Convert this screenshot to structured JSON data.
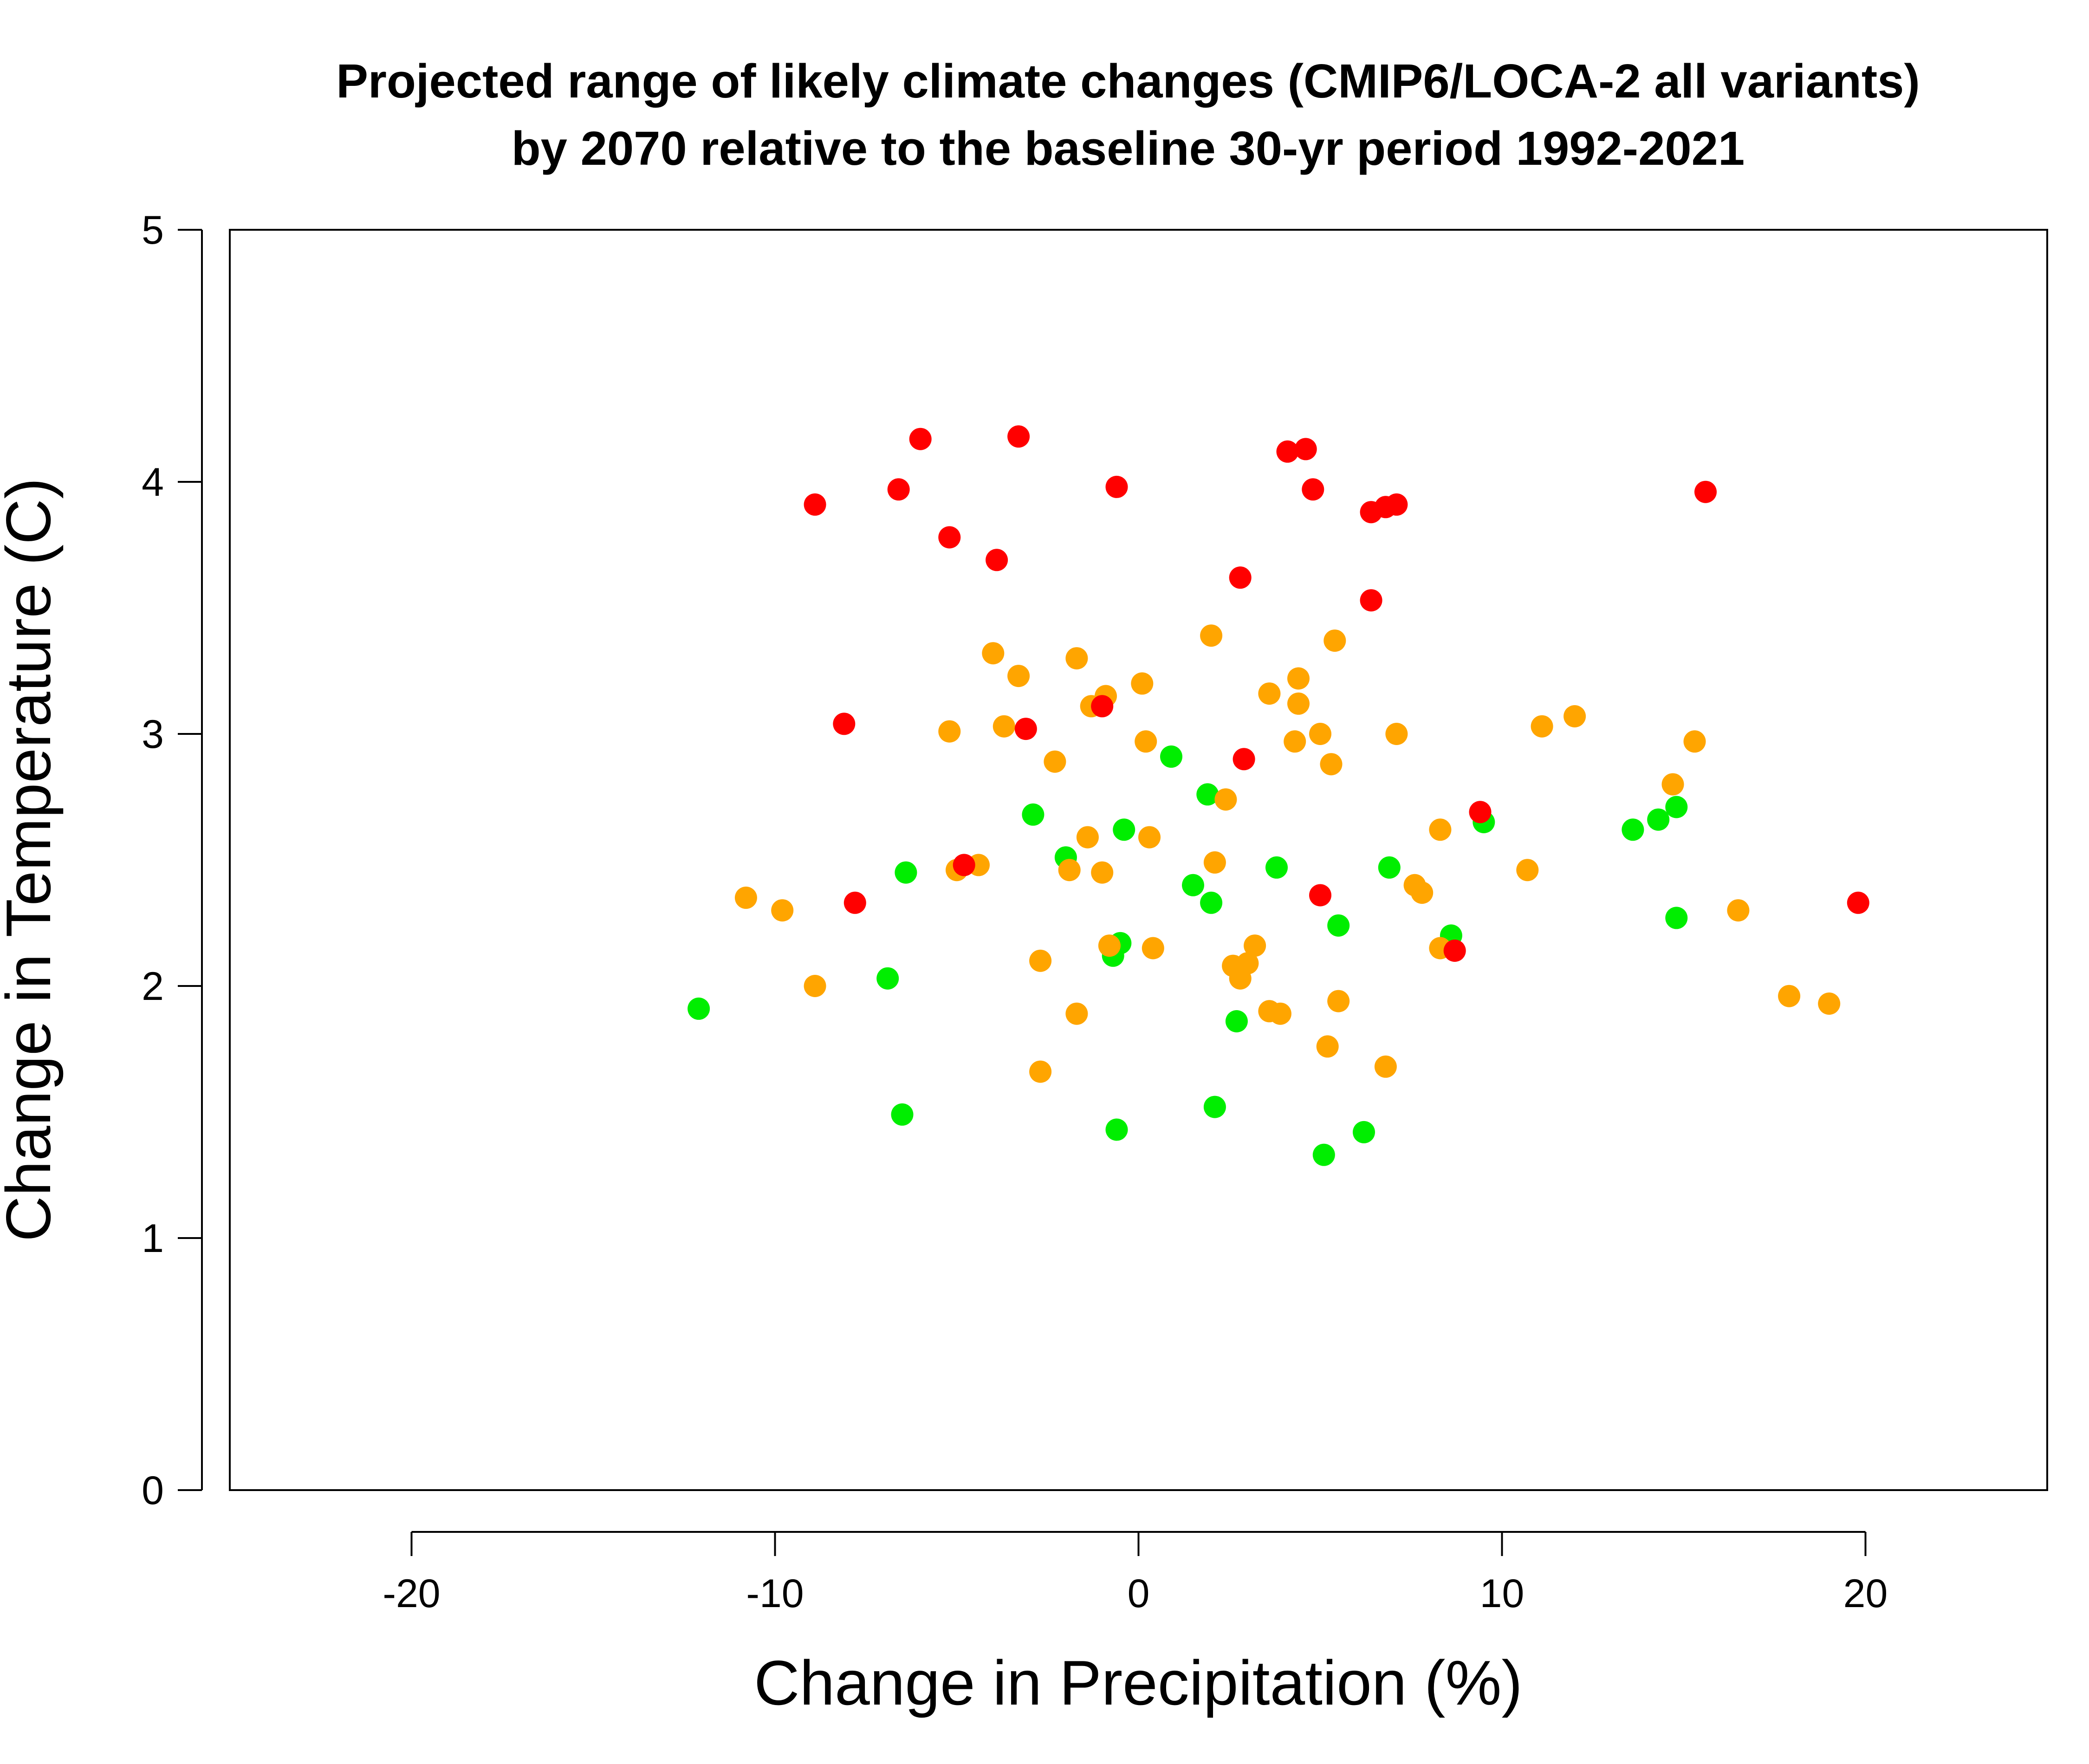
{
  "chart_data": {
    "type": "scatter",
    "title": "Projected range of likely climate changes (CMIP6/LOCA-2 all variants)",
    "subtitle": "by 2070 relative to the baseline 30-yr period 1992-2021",
    "xlabel": "Change in Precipitation (%)",
    "ylabel": "Change in Temperature (C)",
    "xlim": [
      -25,
      25
    ],
    "ylim": [
      0,
      5
    ],
    "x_ticks": [
      -20,
      -10,
      0,
      10,
      20
    ],
    "x_tick_labels": [
      "-20",
      "-10",
      "0",
      "10",
      "20"
    ],
    "y_ticks": [
      0,
      1,
      2,
      3,
      4,
      5
    ],
    "y_tick_labels": [
      "0",
      "1",
      "2",
      "3",
      "4",
      "5"
    ],
    "grid": false,
    "legend": "none",
    "series": [
      {
        "color": "#00ee00",
        "points": [
          [
            -12.1,
            1.91
          ],
          [
            -6.9,
            2.03
          ],
          [
            -6.4,
            2.45
          ],
          [
            -6.5,
            1.49
          ],
          [
            -2.9,
            2.68
          ],
          [
            -2.0,
            2.51
          ],
          [
            -0.4,
            2.62
          ],
          [
            -0.5,
            2.17
          ],
          [
            -0.7,
            2.12
          ],
          [
            -0.6,
            1.43
          ],
          [
            0.9,
            2.91
          ],
          [
            1.5,
            2.4
          ],
          [
            1.9,
            2.76
          ],
          [
            2.0,
            2.33
          ],
          [
            2.1,
            1.52
          ],
          [
            2.7,
            1.86
          ],
          [
            3.8,
            2.47
          ],
          [
            5.1,
            1.33
          ],
          [
            5.5,
            2.24
          ],
          [
            6.2,
            1.42
          ],
          [
            6.9,
            2.47
          ],
          [
            8.6,
            2.2
          ],
          [
            9.5,
            2.65
          ],
          [
            13.6,
            2.62
          ],
          [
            14.3,
            2.66
          ],
          [
            14.8,
            2.71
          ],
          [
            14.8,
            2.27
          ]
        ]
      },
      {
        "color": "#ffa500",
        "points": [
          [
            -10.8,
            2.35
          ],
          [
            -9.8,
            2.3
          ],
          [
            -8.9,
            2.0
          ],
          [
            -5.2,
            3.01
          ],
          [
            -5.0,
            2.46
          ],
          [
            -4.4,
            2.48
          ],
          [
            -4.0,
            3.32
          ],
          [
            -3.7,
            3.03
          ],
          [
            -3.3,
            3.23
          ],
          [
            -2.7,
            2.1
          ],
          [
            -2.7,
            1.66
          ],
          [
            -2.3,
            2.89
          ],
          [
            -1.9,
            2.46
          ],
          [
            -1.7,
            3.3
          ],
          [
            -1.7,
            1.89
          ],
          [
            -1.4,
            2.59
          ],
          [
            -1.3,
            3.11
          ],
          [
            -1.0,
            2.45
          ],
          [
            -0.9,
            3.15
          ],
          [
            -0.8,
            2.16
          ],
          [
            0.1,
            3.2
          ],
          [
            0.2,
            2.97
          ],
          [
            0.3,
            2.59
          ],
          [
            0.4,
            2.15
          ],
          [
            2.0,
            3.39
          ],
          [
            2.1,
            2.49
          ],
          [
            2.4,
            2.74
          ],
          [
            2.6,
            2.08
          ],
          [
            2.8,
            2.03
          ],
          [
            3.0,
            2.09
          ],
          [
            3.2,
            2.16
          ],
          [
            3.6,
            1.9
          ],
          [
            3.6,
            3.16
          ],
          [
            3.9,
            1.89
          ],
          [
            4.3,
            2.97
          ],
          [
            4.4,
            3.22
          ],
          [
            4.4,
            3.12
          ],
          [
            5.0,
            3.0
          ],
          [
            5.2,
            1.76
          ],
          [
            5.3,
            2.88
          ],
          [
            5.4,
            3.37
          ],
          [
            5.5,
            1.94
          ],
          [
            6.8,
            1.68
          ],
          [
            7.1,
            3.0
          ],
          [
            7.6,
            2.4
          ],
          [
            7.8,
            2.37
          ],
          [
            8.3,
            2.62
          ],
          [
            8.3,
            2.15
          ],
          [
            10.7,
            2.46
          ],
          [
            11.1,
            3.03
          ],
          [
            12.0,
            3.07
          ],
          [
            14.7,
            2.8
          ],
          [
            15.3,
            2.97
          ],
          [
            16.5,
            2.3
          ],
          [
            17.9,
            1.96
          ],
          [
            19.0,
            1.93
          ]
        ]
      },
      {
        "color": "#ff0000",
        "points": [
          [
            -8.9,
            3.91
          ],
          [
            -8.1,
            3.04
          ],
          [
            -7.8,
            2.33
          ],
          [
            -6.6,
            3.97
          ],
          [
            -6.0,
            4.17
          ],
          [
            -5.2,
            3.78
          ],
          [
            -4.8,
            2.48
          ],
          [
            -3.9,
            3.69
          ],
          [
            -3.3,
            4.18
          ],
          [
            -3.1,
            3.02
          ],
          [
            -1.0,
            3.11
          ],
          [
            -0.6,
            3.98
          ],
          [
            2.8,
            3.62
          ],
          [
            2.9,
            2.9
          ],
          [
            4.1,
            4.12
          ],
          [
            4.6,
            4.13
          ],
          [
            4.8,
            3.97
          ],
          [
            5.0,
            2.36
          ],
          [
            6.4,
            3.88
          ],
          [
            6.4,
            3.53
          ],
          [
            6.8,
            3.9
          ],
          [
            7.1,
            3.91
          ],
          [
            8.7,
            2.14
          ],
          [
            9.4,
            2.69
          ],
          [
            15.6,
            3.96
          ],
          [
            19.8,
            2.33
          ]
        ]
      }
    ]
  }
}
